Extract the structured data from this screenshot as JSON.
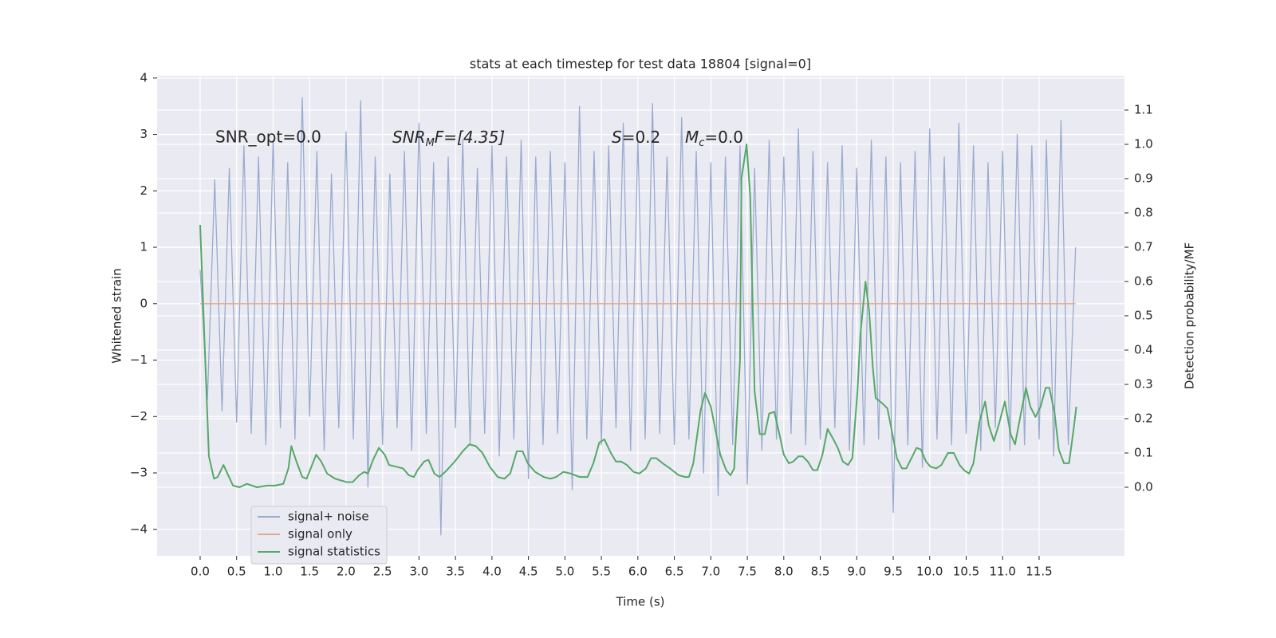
{
  "chart_data": {
    "type": "line",
    "title": "stats at each timestep for test data 18804 [signal=0]",
    "xlabel": "Time (s)",
    "ylabel": "Whitened strain",
    "y2label": "Detection probability/MF",
    "annotations": [
      "SNR_opt=0.0",
      {
        "main": "SNR",
        "sub": "M",
        "tail": "F=[4.35]"
      },
      {
        "main": "S",
        "tail": "=0.2"
      },
      {
        "main": "M",
        "sub": "c",
        "tail": "=0.0"
      }
    ],
    "xlim": [
      -0.59,
      12.67
    ],
    "ylim": [
      -4.47,
      4.04
    ],
    "y2lim": [
      -0.2,
      1.2
    ],
    "xticks": [
      {
        "value": 0,
        "label": "0.0"
      },
      0.5,
      {
        "value": 1,
        "label": "1.0"
      },
      1.5,
      {
        "value": 2,
        "label": "2.0"
      },
      2.5,
      {
        "value": 3,
        "label": "3.0"
      },
      3.5,
      {
        "value": 4,
        "label": "4.0"
      },
      4.5,
      {
        "value": 5,
        "label": "5.0"
      },
      5.5,
      {
        "value": 6,
        "label": "6.0"
      },
      6.5,
      {
        "value": 7,
        "label": "7.0"
      },
      7.5,
      {
        "value": 8,
        "label": "8.0"
      },
      8.5,
      {
        "value": 9,
        "label": "9.0"
      },
      9.5,
      {
        "value": 10,
        "label": "10.0"
      },
      10.5,
      {
        "value": 11,
        "label": "11.0"
      },
      11.5
    ],
    "yticks": [
      {
        "value": -4,
        "label": "−4"
      },
      {
        "value": -3,
        "label": "−3"
      },
      {
        "value": -2,
        "label": "−2"
      },
      {
        "value": -1,
        "label": "−1"
      },
      0,
      1,
      2,
      3,
      4
    ],
    "y2ticks": [
      {
        "value": 0,
        "label": "0.0"
      },
      0.1,
      0.2,
      0.3,
      0.4,
      0.5,
      0.6,
      0.7,
      0.8,
      0.9,
      {
        "value": 1,
        "label": "1.0"
      },
      1.1
    ],
    "grid": true,
    "legend": "lower left",
    "series": [
      {
        "name": "signal+ noise",
        "color": "#9aabd0",
        "axis": "y",
        "x": [
          0,
          0.1,
          0.2,
          0.3,
          0.4,
          0.5,
          0.6,
          0.7,
          0.8,
          0.9,
          1,
          1.1,
          1.2,
          1.3,
          1.4,
          1.5,
          1.6,
          1.7,
          1.8,
          1.9,
          2,
          2.1,
          2.2,
          2.3,
          2.4,
          2.5,
          2.6,
          2.7,
          2.8,
          2.9,
          3,
          3.1,
          3.2,
          3.3,
          3.4,
          3.5,
          3.6,
          3.7,
          3.8,
          3.9,
          4,
          4.1,
          4.2,
          4.3,
          4.4,
          4.5,
          4.6,
          4.7,
          4.8,
          4.9,
          5,
          5.1,
          5.2,
          5.3,
          5.4,
          5.5,
          5.6,
          5.7,
          5.8,
          5.9,
          6,
          6.1,
          6.2,
          6.3,
          6.4,
          6.5,
          6.6,
          6.7,
          6.8,
          6.9,
          7,
          7.1,
          7.2,
          7.3,
          7.4,
          7.5,
          7.6,
          7.7,
          7.8,
          7.9,
          8,
          8.1,
          8.2,
          8.3,
          8.4,
          8.5,
          8.6,
          8.7,
          8.8,
          8.9,
          9,
          9.1,
          9.2,
          9.3,
          9.4,
          9.5,
          9.6,
          9.7,
          9.8,
          9.9,
          10,
          10.1,
          10.2,
          10.3,
          10.4,
          10.5,
          10.6,
          10.7,
          10.8,
          10.9,
          11,
          11.1,
          11.2,
          11.3,
          11.4,
          11.5,
          11.6,
          11.7,
          11.8,
          11.9,
          12
        ],
        "values": [
          0.6,
          -1.7,
          2.2,
          -1.9,
          2.4,
          -2.1,
          2.8,
          -2.3,
          2.6,
          -2.5,
          2.9,
          -2.2,
          2.5,
          -2.4,
          3.65,
          -2.0,
          2.7,
          -2.6,
          2.3,
          -2.2,
          3.05,
          -2.4,
          3.6,
          -3.25,
          2.6,
          -2.5,
          2.3,
          -2.2,
          2.7,
          -2.6,
          3.2,
          -2.3,
          2.5,
          -4.1,
          2.6,
          -2.2,
          2.9,
          -2.5,
          2.4,
          -2.3,
          2.8,
          -2.7,
          2.6,
          -2.4,
          2.9,
          -3.1,
          2.6,
          -2.5,
          2.7,
          -2.3,
          2.5,
          -3.3,
          3.5,
          -2.4,
          2.7,
          -2.5,
          2.8,
          -2.2,
          3.2,
          -2.6,
          2.9,
          -2.4,
          3.55,
          -2.3,
          2.6,
          -2.5,
          3.3,
          -2.4,
          2.7,
          -3.0,
          2.5,
          -3.4,
          2.6,
          -2.5,
          2.8,
          -3.2,
          2.4,
          -2.6,
          2.9,
          -2.4,
          2.6,
          -2.3,
          3.1,
          -2.5,
          2.7,
          -2.4,
          2.5,
          -2.2,
          2.8,
          -2.6,
          2.4,
          -2.5,
          2.9,
          -2.4,
          2.6,
          -3.7,
          2.5,
          -2.5,
          2.7,
          -2.9,
          3.1,
          -2.4,
          2.6,
          -2.5,
          3.2,
          -2.3,
          2.8,
          -2.6,
          2.5,
          -2.2,
          2.7,
          -2.6,
          3.0,
          -2.5,
          2.8,
          -2.4,
          2.9,
          -2.7,
          3.25,
          -2.5,
          1.0
        ]
      },
      {
        "name": "signal only",
        "color": "#e6a88c",
        "axis": "y",
        "x": [
          0,
          12
        ],
        "values": [
          0,
          0
        ]
      },
      {
        "name": "signal statistics",
        "color": "#55a868",
        "axis": "y2",
        "x": [
          0,
          0.12,
          0.19,
          0.24,
          0.32,
          0.45,
          0.54,
          0.64,
          0.78,
          0.92,
          1.03,
          1.14,
          1.21,
          1.25,
          1.32,
          1.4,
          1.46,
          1.59,
          1.66,
          1.74,
          1.85,
          2.01,
          2.09,
          2.18,
          2.25,
          2.3,
          2.37,
          2.45,
          2.53,
          2.59,
          2.69,
          2.78,
          2.86,
          2.93,
          2.98,
          3.07,
          3.13,
          3.21,
          3.28,
          3.36,
          3.49,
          3.6,
          3.69,
          3.78,
          3.87,
          3.97,
          4.08,
          4.17,
          4.25,
          4.34,
          4.42,
          4.49,
          4.59,
          4.71,
          4.8,
          4.88,
          4.98,
          5.08,
          5.2,
          5.31,
          5.39,
          5.47,
          5.54,
          5.63,
          5.7,
          5.77,
          5.85,
          5.94,
          6.02,
          6.11,
          6.18,
          6.25,
          6.34,
          6.44,
          6.56,
          6.65,
          6.7,
          6.76,
          6.86,
          6.92,
          7,
          7.07,
          7.13,
          7.21,
          7.27,
          7.32,
          7.4,
          7.42,
          7.49,
          7.54,
          7.6,
          7.67,
          7.74,
          7.8,
          7.87,
          7.94,
          8,
          8.07,
          8.13,
          8.2,
          8.26,
          8.33,
          8.4,
          8.46,
          8.53,
          8.6,
          8.68,
          8.74,
          8.81,
          8.88,
          8.94,
          9.01,
          9.05,
          9.12,
          9.17,
          9.22,
          9.26,
          9.35,
          9.42,
          9.49,
          9.55,
          9.62,
          9.68,
          9.75,
          9.82,
          9.88,
          9.95,
          10.01,
          10.09,
          10.16,
          10.25,
          10.33,
          10.41,
          10.47,
          10.54,
          10.6,
          10.68,
          10.76,
          10.81,
          10.88,
          10.95,
          11.03,
          11.11,
          11.17,
          11.25,
          11.32,
          11.38,
          11.45,
          11.52,
          11.59,
          11.64,
          11.71,
          11.77,
          11.84,
          11.91,
          11.97,
          12.01
        ],
        "values": [
          0.765,
          0.09,
          0.025,
          0.03,
          0.065,
          0.005,
          0.0,
          0.01,
          0.0,
          0.005,
          0.005,
          0.01,
          0.055,
          0.12,
          0.075,
          0.03,
          0.025,
          0.095,
          0.075,
          0.04,
          0.025,
          0.015,
          0.015,
          0.035,
          0.045,
          0.04,
          0.08,
          0.115,
          0.095,
          0.065,
          0.06,
          0.055,
          0.035,
          0.03,
          0.05,
          0.075,
          0.08,
          0.04,
          0.03,
          0.045,
          0.075,
          0.105,
          0.125,
          0.12,
          0.1,
          0.06,
          0.03,
          0.025,
          0.04,
          0.105,
          0.105,
          0.07,
          0.045,
          0.03,
          0.025,
          0.03,
          0.045,
          0.04,
          0.03,
          0.03,
          0.07,
          0.13,
          0.14,
          0.1,
          0.075,
          0.075,
          0.065,
          0.045,
          0.04,
          0.055,
          0.085,
          0.085,
          0.07,
          0.055,
          0.035,
          0.03,
          0.03,
          0.07,
          0.225,
          0.275,
          0.235,
          0.16,
          0.095,
          0.05,
          0.035,
          0.055,
          0.37,
          0.9,
          1.0,
          0.85,
          0.28,
          0.155,
          0.155,
          0.215,
          0.22,
          0.155,
          0.095,
          0.07,
          0.075,
          0.09,
          0.09,
          0.075,
          0.05,
          0.05,
          0.095,
          0.17,
          0.14,
          0.115,
          0.075,
          0.065,
          0.085,
          0.28,
          0.445,
          0.6,
          0.515,
          0.35,
          0.26,
          0.245,
          0.23,
          0.155,
          0.085,
          0.055,
          0.055,
          0.085,
          0.115,
          0.11,
          0.075,
          0.06,
          0.055,
          0.065,
          0.1,
          0.1,
          0.065,
          0.05,
          0.04,
          0.07,
          0.19,
          0.25,
          0.18,
          0.135,
          0.185,
          0.25,
          0.155,
          0.125,
          0.215,
          0.29,
          0.235,
          0.205,
          0.235,
          0.29,
          0.29,
          0.22,
          0.11,
          0.07,
          0.07,
          0.165,
          0.235
        ]
      }
    ]
  }
}
